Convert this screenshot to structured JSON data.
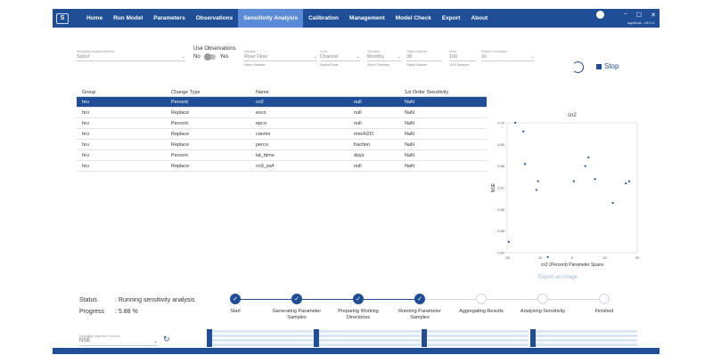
{
  "app": {
    "logo": "S",
    "version": "aapiKuai - v3.0.0"
  },
  "nav": [
    "Home",
    "Run Model",
    "Parameters",
    "Observations",
    "Sensitivity Analysis",
    "Calibration",
    "Management",
    "Model Check",
    "Export",
    "About"
  ],
  "nav_active": "Sensitivity Analysis",
  "window_controls": [
    "−",
    "☐",
    "✕"
  ],
  "settings": {
    "method": {
      "label": "Sensitivity Analysis Method",
      "value": "Sobol"
    },
    "use_obs": {
      "label": "Use Observations",
      "no": "No",
      "yes": "Yes"
    },
    "variable": {
      "label": "Variable",
      "value": "River Flow",
      "hint": "Select Variable"
    },
    "level": {
      "label": "Level",
      "value": "Channel",
      "hint": "Spatial Scale"
    },
    "timestep": {
      "label": "Timestep",
      "value": "Monthly",
      "hint": "Select Timestep"
    },
    "object_number": {
      "label": "Object Number",
      "value": "38",
      "hint": "Object Number"
    },
    "seed": {
      "label": "Seed",
      "value": "100",
      "hint": "1000 Samples"
    },
    "parallel": {
      "label": "Parallel Processes",
      "value": "16"
    },
    "stop_label": "Stop"
  },
  "table": {
    "headers": {
      "group": "Group",
      "change_type": "Change Type",
      "name": "Name",
      "unit": "",
      "sensitivity": "1st Order Sensitivity"
    },
    "rows": [
      {
        "group": "hru",
        "change_type": "Percent",
        "name": "cn2",
        "unit": "null",
        "sensitivity": "NaN"
      },
      {
        "group": "hru",
        "change_type": "Replace",
        "name": "esco",
        "unit": "null",
        "sensitivity": "NaN"
      },
      {
        "group": "hru",
        "change_type": "Percent",
        "name": "epco",
        "unit": "null",
        "sensitivity": "NaN"
      },
      {
        "group": "hru",
        "change_type": "Replace",
        "name": "canmx",
        "unit": "mm/H2O",
        "sensitivity": "NaN"
      },
      {
        "group": "hru",
        "change_type": "Replace",
        "name": "perco",
        "unit": "fraction",
        "sensitivity": "NaN"
      },
      {
        "group": "hru",
        "change_type": "Percent",
        "name": "lat_ttime",
        "unit": "days",
        "sensitivity": "NaN"
      },
      {
        "group": "hru",
        "change_type": "Replace",
        "name": "cn3_swf",
        "unit": "null",
        "sensitivity": "NaN"
      }
    ]
  },
  "chart_data": {
    "type": "scatter",
    "title": "cn2",
    "xlabel": "cn2 (Percent) Parameter Space",
    "ylabel": "NSE",
    "xlim": [
      -20,
      20
    ],
    "ylim": [
      0.64,
      0.7
    ],
    "xticks": [
      "-20",
      "-10",
      "0",
      "10",
      "20"
    ],
    "yticks": [
      "0.64",
      "0.65",
      "0.66",
      "0.67",
      "0.68",
      "0.69",
      "0.70"
    ],
    "x": [
      -19.5,
      -17.5,
      -15.0,
      -14.5,
      -11.0,
      -10.5,
      -7.5,
      0.5,
      4.0,
      5.0,
      7.0,
      12.5,
      16.5,
      17.5
    ],
    "y": [
      0.645,
      0.7,
      0.696,
      0.681,
      0.669,
      0.673,
      0.638,
      0.673,
      0.68,
      0.684,
      0.674,
      0.663,
      0.672,
      0.673
    ],
    "grid": false,
    "color": "#1f4e96"
  },
  "export_label": "Export as Image",
  "status": {
    "label": "Status",
    "value": ": Running sensitivity analysis",
    "progress_label": "Progress",
    "progress_value": ": 5.88 %"
  },
  "steps": [
    {
      "label": "Start",
      "done": true
    },
    {
      "label": "Generating Parameter Samples",
      "done": true
    },
    {
      "label": "Preparing Working Directories",
      "done": true
    },
    {
      "label": "Running Parameter Samples",
      "done": true
    },
    {
      "label": "Aggregating Results",
      "done": false
    },
    {
      "label": "Analysing Sensitivity",
      "done": false
    },
    {
      "label": "Finished",
      "done": false
    }
  ],
  "objective": {
    "label": "Sensitivity Objective Function",
    "value": "NSE"
  },
  "colors": {
    "primary": "#1f4e96",
    "active_tab": "#5b8ad6"
  }
}
